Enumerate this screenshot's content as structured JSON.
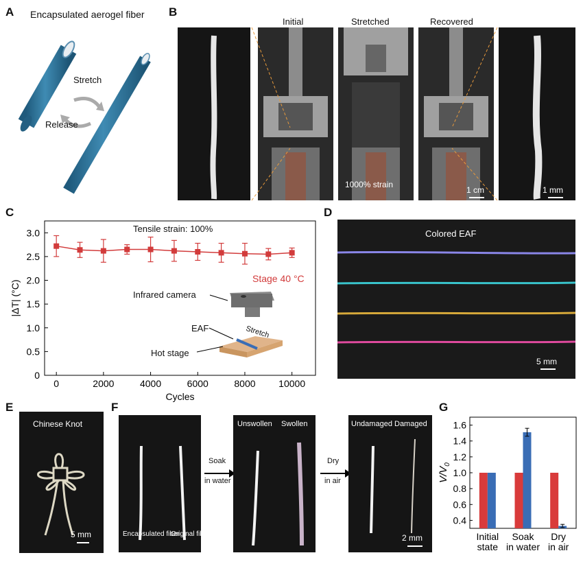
{
  "panels": {
    "a": {
      "letter": "A",
      "title": "Encapsulated aerogel fiber",
      "stretch": "Stretch",
      "release": "Release",
      "colors": {
        "fiber": "#2b6f94",
        "fiber_light": "#3f8bb3"
      }
    },
    "b": {
      "letter": "B",
      "labels": [
        "Initial",
        "Stretched",
        "Recovered"
      ],
      "strain_label": "1000% strain",
      "scale_cm": "1 cm",
      "scale_mm": "1 mm"
    },
    "c": {
      "letter": "C",
      "title": "Tensile strain: 100%",
      "stage_label": "Stage 40 °C",
      "camera_label": "Infrared camera",
      "eaf_label": "EAF",
      "stretch_label": "Stretch",
      "hotstage_label": "Hot stage",
      "series_color": "#d23b3b"
    },
    "d": {
      "letter": "D",
      "title": "Colored EAF",
      "scale": "5 mm",
      "fiber_colors": [
        "#8a86e8",
        "#39c4cc",
        "#d7a93a",
        "#e04a9e"
      ]
    },
    "e": {
      "letter": "E",
      "title": "Chinese Knot",
      "scale": "5 mm"
    },
    "f": {
      "letter": "F",
      "sub1_labels": [
        "Encapsulated fiber",
        "Original fiber"
      ],
      "sub2_labels": [
        "Unswollen",
        "Swollen"
      ],
      "sub3_labels": [
        "Undamaged",
        "Damaged"
      ],
      "arrow1": [
        "Soak",
        "in water"
      ],
      "arrow2": [
        "Dry",
        "in air"
      ],
      "scale": "2 mm"
    },
    "g": {
      "letter": "G",
      "colors": {
        "red": "#d93b3b",
        "blue": "#3a6db5"
      }
    }
  },
  "chart_data": [
    {
      "type": "line",
      "panel": "C",
      "title": "Tensile strain: 100%",
      "xlabel": "Cycles",
      "ylabel": "|ΔT| (°C)",
      "xlim": [
        -500,
        11000
      ],
      "ylim": [
        0,
        3.25
      ],
      "xticks": [
        0,
        2000,
        4000,
        6000,
        8000,
        10000
      ],
      "yticks": [
        0,
        0.5,
        1.0,
        1.5,
        2.0,
        2.5,
        3.0
      ],
      "ytick_labels": [
        "0",
        "0.5",
        "1.0",
        "1.5",
        "2.0",
        "2.5",
        "3.0"
      ],
      "series": [
        {
          "name": "Stage 40 °C",
          "x": [
            0,
            1000,
            2000,
            3000,
            4000,
            5000,
            6000,
            7000,
            8000,
            9000,
            10000
          ],
          "y": [
            2.72,
            2.64,
            2.62,
            2.65,
            2.65,
            2.62,
            2.6,
            2.58,
            2.56,
            2.55,
            2.58
          ],
          "err": [
            0.22,
            0.16,
            0.24,
            0.1,
            0.26,
            0.22,
            0.18,
            0.2,
            0.22,
            0.12,
            0.1
          ]
        }
      ]
    },
    {
      "type": "bar",
      "panel": "G",
      "ylabel": "V/V0",
      "ylim": [
        0.3,
        1.7
      ],
      "yticks": [
        0.4,
        0.6,
        0.8,
        1.0,
        1.2,
        1.4,
        1.6
      ],
      "ytick_labels": [
        "0.4",
        "0.6",
        "0.8",
        "1.0",
        "1.2",
        "1.4",
        "1.6"
      ],
      "categories": [
        [
          "Initial",
          "state"
        ],
        [
          "Soak",
          "in water"
        ],
        [
          "Dry",
          "in air"
        ]
      ],
      "series": [
        {
          "values": [
            1.0,
            1.0,
            1.0
          ],
          "err": [
            0,
            0,
            0
          ]
        },
        {
          "values": [
            1.0,
            1.51,
            0.33
          ],
          "err": [
            0,
            0.05,
            0.02
          ]
        }
      ]
    }
  ]
}
